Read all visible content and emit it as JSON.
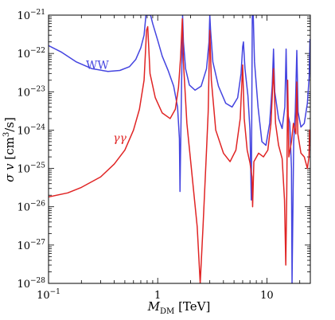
{
  "chart_data": {
    "type": "line",
    "xscale": "log",
    "yscale": "log",
    "xlim": [
      0.1,
      25
    ],
    "ylim": [
      1e-28,
      1e-21
    ],
    "xlabel": {
      "main": "M",
      "sub": "DM",
      "unit": "[TeV]"
    },
    "ylabel": {
      "main": "σ v",
      "unit": "[cm",
      "sup": "3",
      "unit_end": "/s]"
    },
    "x_ticks": [
      {
        "value": 0.1,
        "base": "10",
        "exp": "−1"
      },
      {
        "value": 1,
        "text": "1"
      },
      {
        "value": 10,
        "text": "10"
      }
    ],
    "y_ticks": [
      {
        "value": 1e-21,
        "base": "10",
        "exp": "−21"
      },
      {
        "value": 1e-22,
        "base": "10",
        "exp": "−22"
      },
      {
        "value": 1e-23,
        "base": "10",
        "exp": "−23"
      },
      {
        "value": 1e-24,
        "base": "10",
        "exp": "−24"
      },
      {
        "value": 1e-25,
        "base": "10",
        "exp": "−25"
      },
      {
        "value": 1e-26,
        "base": "10",
        "exp": "−26"
      },
      {
        "value": 1e-27,
        "base": "10",
        "exp": "−27"
      },
      {
        "value": 1e-28,
        "base": "10",
        "exp": "−28"
      }
    ],
    "series": [
      {
        "name": "WW",
        "color": "#4444e0",
        "label_at": [
          0.22,
          4e-23
        ],
        "points": [
          [
            0.1,
            1.6e-22
          ],
          [
            0.13,
            1.1e-22
          ],
          [
            0.18,
            6e-23
          ],
          [
            0.25,
            4e-23
          ],
          [
            0.35,
            3.4e-23
          ],
          [
            0.45,
            3.6e-23
          ],
          [
            0.55,
            4.5e-23
          ],
          [
            0.63,
            7e-23
          ],
          [
            0.7,
            1.4e-22
          ],
          [
            0.75,
            3e-22
          ],
          [
            0.78,
            1e-21
          ],
          [
            0.86,
            1e-21
          ],
          [
            0.9,
            6e-22
          ],
          [
            1.0,
            2.2e-22
          ],
          [
            1.1,
            8.5e-23
          ],
          [
            1.25,
            3.5e-23
          ],
          [
            1.4,
            1.4e-23
          ],
          [
            1.52,
            4e-24
          ],
          [
            1.58,
            6e-25
          ],
          [
            1.6,
            2.5e-26
          ],
          [
            1.62,
            3e-25
          ],
          [
            1.66,
            3e-23
          ],
          [
            1.69,
            1e-21
          ],
          [
            1.72,
            2e-22
          ],
          [
            1.8,
            4e-23
          ],
          [
            1.95,
            1.5e-23
          ],
          [
            2.2,
            1.1e-23
          ],
          [
            2.5,
            1.4e-23
          ],
          [
            2.8,
            4e-23
          ],
          [
            2.95,
            2e-22
          ],
          [
            3.0,
            1e-21
          ],
          [
            3.05,
            4e-22
          ],
          [
            3.2,
            6e-23
          ],
          [
            3.6,
            1.4e-23
          ],
          [
            4.2,
            5e-24
          ],
          [
            4.8,
            4e-24
          ],
          [
            5.4,
            7e-24
          ],
          [
            5.8,
            3e-23
          ],
          [
            6.0,
            1.5e-22
          ],
          [
            6.1,
            2e-22
          ],
          [
            6.3,
            4e-23
          ],
          [
            6.7,
            8e-24
          ],
          [
            7.0,
            1e-24
          ],
          [
            7.2,
            1.5e-26
          ],
          [
            7.35,
            1e-21
          ],
          [
            7.5,
            1e-21
          ],
          [
            7.7,
            6e-23
          ],
          [
            8.3,
            4e-24
          ],
          [
            9.0,
            5e-25
          ],
          [
            9.8,
            4e-25
          ],
          [
            10.6,
            1.5e-24
          ],
          [
            11.2,
            1.5e-23
          ],
          [
            11.5,
            1.3e-22
          ],
          [
            11.8,
            1e-23
          ],
          [
            12.8,
            2e-24
          ],
          [
            13.8,
            1.1e-24
          ],
          [
            14.6,
            4e-24
          ],
          [
            15.0,
            1.3e-22
          ],
          [
            15.4,
            3e-24
          ],
          [
            16.2,
            1.5e-24
          ],
          [
            16.8,
            1e-25
          ],
          [
            17.0,
            1e-28
          ],
          [
            17.6,
            5e-25
          ],
          [
            18.2,
            3e-24
          ],
          [
            18.8,
            1.2e-22
          ],
          [
            19.3,
            3e-24
          ],
          [
            20.5,
            1.2e-24
          ],
          [
            22.0,
            1.5e-24
          ],
          [
            23.5,
            5e-24
          ],
          [
            24.4,
            2.5e-23
          ],
          [
            24.8,
            2.3e-22
          ],
          [
            25.0,
            2e-22
          ]
        ]
      },
      {
        "name": "γγ",
        "color": "#e02424",
        "label_at": [
          0.39,
          5e-25
        ],
        "points": [
          [
            0.1,
            1.8e-26
          ],
          [
            0.15,
            2.3e-26
          ],
          [
            0.2,
            3.2e-26
          ],
          [
            0.3,
            6e-26
          ],
          [
            0.4,
            1.3e-25
          ],
          [
            0.5,
            3e-25
          ],
          [
            0.6,
            1e-24
          ],
          [
            0.68,
            3.5e-24
          ],
          [
            0.75,
            2e-23
          ],
          [
            0.79,
            4e-22
          ],
          [
            0.81,
            5e-22
          ],
          [
            0.85,
            3e-23
          ],
          [
            0.95,
            7e-24
          ],
          [
            1.1,
            2.8e-24
          ],
          [
            1.3,
            2e-24
          ],
          [
            1.45,
            3.5e-24
          ],
          [
            1.55,
            1.3e-23
          ],
          [
            1.62,
            8e-23
          ],
          [
            1.68,
            8e-22
          ],
          [
            1.72,
            6e-23
          ],
          [
            1.85,
            1.5e-24
          ],
          [
            2.05,
            8e-26
          ],
          [
            2.3,
            3e-27
          ],
          [
            2.45,
            1e-28
          ],
          [
            2.6,
            3e-27
          ],
          [
            2.8,
            3e-25
          ],
          [
            2.9,
            3e-24
          ],
          [
            3.0,
            4e-22
          ],
          [
            3.1,
            2e-23
          ],
          [
            3.4,
            1e-24
          ],
          [
            4.0,
            2.5e-25
          ],
          [
            4.6,
            1.5e-25
          ],
          [
            5.2,
            3e-25
          ],
          [
            5.7,
            2e-24
          ],
          [
            6.0,
            5e-23
          ],
          [
            6.2,
            2e-24
          ],
          [
            6.6,
            3e-25
          ],
          [
            7.0,
            1.4e-25
          ],
          [
            7.3,
            6e-26
          ],
          [
            7.4,
            1e-26
          ],
          [
            7.6,
            1.5e-25
          ],
          [
            8.4,
            2.5e-25
          ],
          [
            9.3,
            2e-25
          ],
          [
            10.2,
            3e-25
          ],
          [
            10.9,
            1.5e-24
          ],
          [
            11.5,
            4e-23
          ],
          [
            12.0,
            1.5e-24
          ],
          [
            12.8,
            4e-25
          ],
          [
            13.8,
            1.8e-25
          ],
          [
            14.5,
            1.5e-26
          ],
          [
            14.9,
            3e-28
          ],
          [
            15.2,
            2e-26
          ],
          [
            15.5,
            2e-23
          ],
          [
            15.9,
            2e-25
          ],
          [
            16.8,
            5e-25
          ],
          [
            17.5,
            1.5e-24
          ],
          [
            18.4,
            8e-25
          ],
          [
            18.8,
            1.8e-23
          ],
          [
            19.2,
            8e-25
          ],
          [
            20.5,
            2.5e-25
          ],
          [
            22.0,
            2e-25
          ],
          [
            23.5,
            1e-25
          ],
          [
            24.3,
            2e-25
          ],
          [
            24.6,
            1e-24
          ],
          [
            24.8,
            7e-25
          ],
          [
            25.0,
            6e-25
          ]
        ]
      }
    ]
  }
}
